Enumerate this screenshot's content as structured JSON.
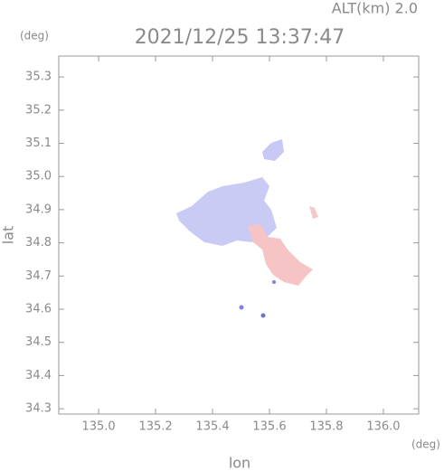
{
  "chart_data": {
    "type": "map",
    "title": "2021/12/25 13:37:47",
    "subtitle": "ALT(km) 2.0",
    "y_unit": "(deg)",
    "x_unit": "(deg)",
    "xlabel": "lon",
    "ylabel": "lat",
    "xlim": [
      134.86,
      136.124
    ],
    "ylim": [
      34.284,
      35.363
    ],
    "xticks": [
      {
        "value": 135,
        "label": "135.0"
      },
      135.2,
      135.4,
      135.6,
      135.8,
      {
        "value": 136,
        "label": "136.0"
      }
    ],
    "yticks": [
      34.3,
      34.4,
      34.5,
      34.6,
      34.7,
      34.8,
      34.9,
      {
        "value": 35,
        "label": "35.0"
      },
      35.1,
      35.2,
      35.3
    ],
    "grid": false
  }
}
